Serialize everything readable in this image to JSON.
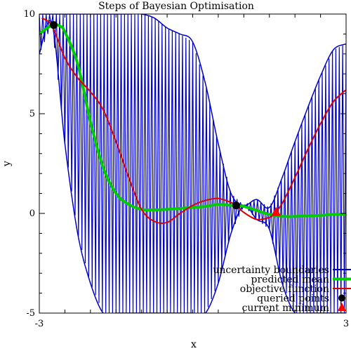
{
  "chart_data": {
    "type": "line",
    "title": "Steps of Bayesian Optimisation",
    "xlabel": "x",
    "ylabel": "y",
    "xlim": [
      -3,
      3
    ],
    "ylim": [
      -5,
      10
    ],
    "x_ticks": [
      "-3",
      "3"
    ],
    "y_ticks": [
      "-5",
      "0",
      "5",
      "10"
    ],
    "legend_position": "bottom-right",
    "series": [
      {
        "name": "uncertainty boundaries",
        "color": "#0000cc",
        "x": [
          -3.0,
          -2.75,
          -2.5,
          -2.25,
          -2.0,
          -1.75,
          -1.5,
          -1.25,
          -1.0,
          -0.75,
          -0.5,
          -0.25,
          0.0,
          0.25,
          0.5,
          0.75,
          1.0,
          1.25,
          1.5,
          1.75,
          2.0,
          2.25,
          2.5,
          2.75,
          3.0
        ],
        "upper": [
          10.0,
          10.0,
          10.0,
          10.0,
          10.0,
          10.0,
          10.0,
          10.0,
          10.0,
          9.8,
          9.3,
          9.0,
          8.6,
          6.5,
          3.5,
          1.0,
          0.4,
          0.7,
          0.3,
          1.8,
          3.6,
          5.3,
          6.9,
          8.2,
          8.5
        ],
        "lower": [
          8.0,
          9.5,
          3.5,
          -1.0,
          -3.5,
          -5.0,
          -5.0,
          -5.0,
          -5.0,
          -5.0,
          -5.0,
          -5.0,
          -5.0,
          -5.0,
          -3.5,
          -1.0,
          0.4,
          -0.3,
          -0.8,
          -3.5,
          -5.0,
          -5.0,
          -5.0,
          -5.0,
          -5.0
        ]
      },
      {
        "name": "predicted mean",
        "color": "#00cc00",
        "x": [
          -3.0,
          -2.75,
          -2.6,
          -2.5,
          -2.25,
          -2.0,
          -1.75,
          -1.5,
          -1.25,
          -1.0,
          -0.75,
          -0.5,
          -0.25,
          0.0,
          0.25,
          0.5,
          0.75,
          0.85,
          1.0,
          1.25,
          1.5,
          1.75,
          2.0,
          2.25,
          2.5,
          2.75,
          3.0
        ],
        "y": [
          9.0,
          9.45,
          9.4,
          9.1,
          7.5,
          4.6,
          2.3,
          1.0,
          0.45,
          0.2,
          0.18,
          0.2,
          0.25,
          0.3,
          0.35,
          0.45,
          0.4,
          0.4,
          0.35,
          0.15,
          -0.05,
          -0.15,
          -0.15,
          -0.12,
          -0.1,
          -0.05,
          -0.05
        ]
      },
      {
        "name": "objective function",
        "color": "#dd0000",
        "x": [
          -2.95,
          -2.75,
          -2.5,
          -2.25,
          -2.0,
          -1.75,
          -1.5,
          -1.25,
          -1.0,
          -0.75,
          -0.5,
          -0.25,
          0.0,
          0.25,
          0.5,
          0.75,
          0.85,
          1.0,
          1.25,
          1.5,
          1.6,
          1.75,
          2.0,
          2.25,
          2.5,
          2.75,
          3.0
        ],
        "y": [
          9.8,
          9.4,
          7.8,
          6.8,
          6.1,
          5.2,
          3.6,
          1.8,
          0.2,
          -0.4,
          -0.45,
          0.0,
          0.4,
          0.65,
          0.75,
          0.55,
          0.4,
          0.05,
          -0.3,
          -0.2,
          0.0,
          0.5,
          1.8,
          3.2,
          4.5,
          5.6,
          6.2
        ]
      },
      {
        "name": "queried points",
        "color": "#000000",
        "marker": "circle",
        "x": [
          -2.72,
          0.85
        ],
        "y": [
          9.45,
          0.4
        ]
      },
      {
        "name": "current minimum",
        "color": "#ff0000",
        "marker": "triangle",
        "x": [
          1.63
        ],
        "y": [
          0.05
        ]
      }
    ]
  }
}
